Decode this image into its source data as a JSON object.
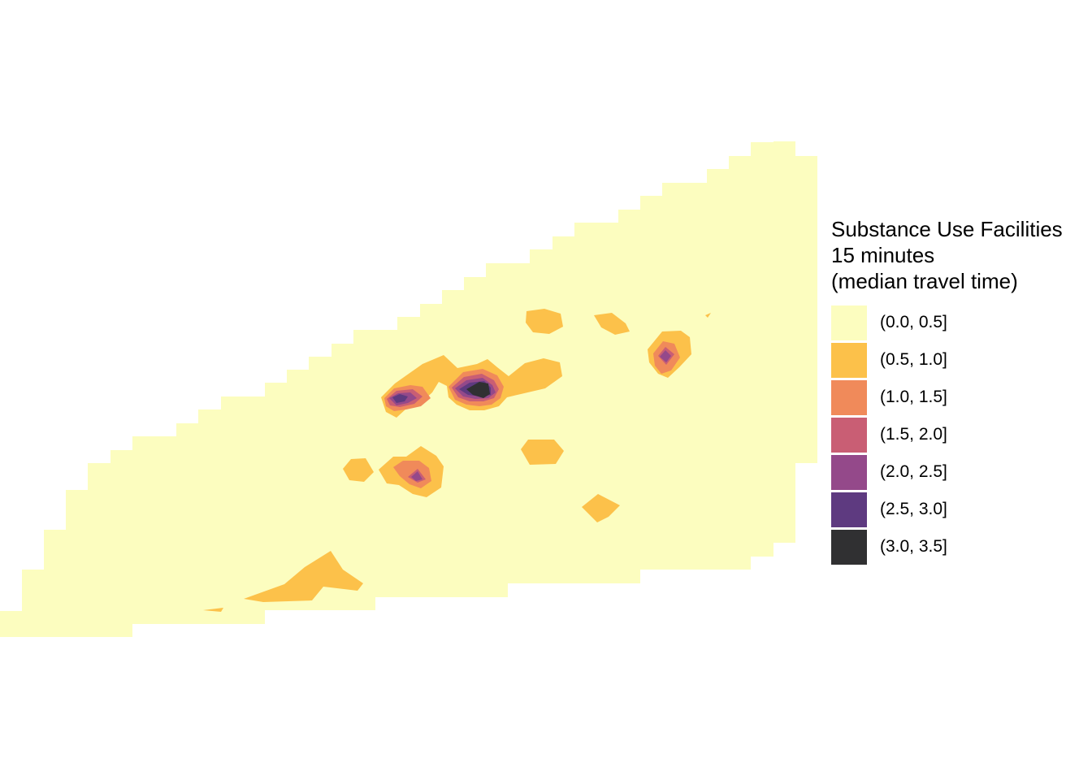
{
  "legend": {
    "title_lines": [
      "Substance Use Facilities",
      "15 minutes",
      "(median travel time)"
    ],
    "items": [
      {
        "label": "(0.0, 0.5]",
        "color": "#fcfdbf"
      },
      {
        "label": "(0.5, 1.0]",
        "color": "#fcc14a"
      },
      {
        "label": "(1.0, 1.5]",
        "color": "#f08a5a"
      },
      {
        "label": "(1.5, 2.0]",
        "color": "#c95e74"
      },
      {
        "label": "(2.0, 2.5]",
        "color": "#94498a"
      },
      {
        "label": "(2.5, 3.0]",
        "color": "#5e3a80"
      },
      {
        "label": "(3.0, 3.5]",
        "color": "#303032"
      }
    ]
  }
}
